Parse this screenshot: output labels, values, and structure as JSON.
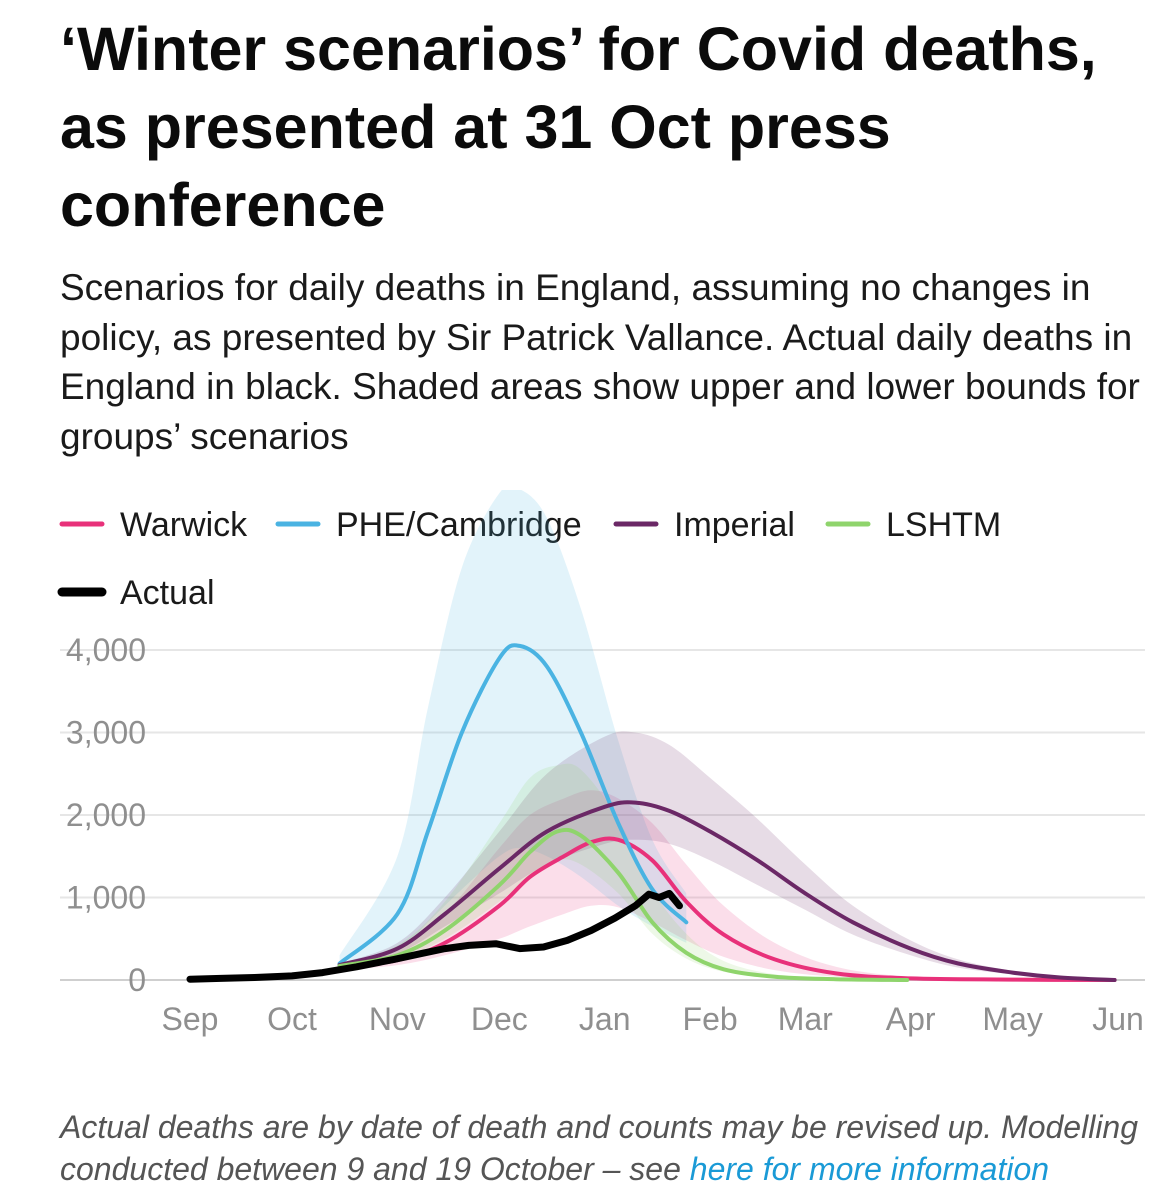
{
  "title": "‘Winter scenarios’ for Covid deaths, as presented at 31 Oct press conference",
  "subtitle": "Scenarios for daily deaths in England, assuming no changes in policy, as presented by Sir Patrick Vallance. Actual daily deaths in England in black. Shaded areas show upper and lower bounds for groups’ scenarios",
  "footnote": {
    "text": "Actual deaths are by date of death and counts may be revised up. Modelling conducted between 9 and 19 October – see ",
    "link_text": "here for more information"
  },
  "colors": {
    "Warwick": "#e8317a",
    "PHE/Cambridge": "#4ab3e2",
    "Imperial": "#6b2866",
    "LSHTM": "#8fd46c",
    "Actual": "#000000"
  },
  "chart_data": {
    "type": "line",
    "x_tick_labels": [
      "Sep",
      "Oct",
      "Nov",
      "Dec",
      "Jan",
      "Feb",
      "Mar",
      "Apr",
      "May",
      "Jun"
    ],
    "y_ticks": [
      0,
      1000,
      2000,
      3000,
      4000
    ],
    "y_tick_labels": [
      "0",
      "1,000",
      "2,000",
      "3,000",
      "4,000"
    ],
    "ylim": [
      0,
      4000
    ],
    "grid": true,
    "legend_position": "top",
    "series": [
      {
        "name": "Warwick",
        "x": [
          "2020-10-15",
          "2020-11-01",
          "2020-11-15",
          "2020-12-01",
          "2020-12-10",
          "2020-12-20",
          "2020-12-28",
          "2021-01-05",
          "2021-01-15",
          "2021-01-25",
          "2021-02-05",
          "2021-02-20",
          "2021-03-10",
          "2021-04-01",
          "2021-05-01",
          "2021-05-31"
        ],
        "values": [
          150,
          240,
          450,
          900,
          1250,
          1500,
          1670,
          1700,
          1450,
          950,
          550,
          250,
          80,
          20,
          5,
          0
        ],
        "lower": [
          120,
          180,
          300,
          500,
          650,
          800,
          900,
          880,
          700,
          480,
          280,
          120,
          40,
          10,
          3,
          0
        ],
        "upper": [
          200,
          350,
          800,
          1600,
          2000,
          2200,
          2300,
          2200,
          1900,
          1400,
          900,
          450,
          160,
          40,
          10,
          0
        ]
      },
      {
        "name": "PHE/Cambridge",
        "x": [
          "2020-10-15",
          "2020-11-01",
          "2020-11-10",
          "2020-11-20",
          "2020-12-01",
          "2020-12-07",
          "2020-12-15",
          "2020-12-25",
          "2021-01-05",
          "2021-01-15",
          "2021-01-25"
        ],
        "values": [
          200,
          800,
          1800,
          3000,
          3900,
          4050,
          3800,
          3000,
          1900,
          1100,
          700
        ],
        "lower": [
          150,
          350,
          700,
          1100,
          1500,
          1600,
          1500,
          1250,
          900,
          650,
          450
        ],
        "upper": [
          300,
          1500,
          3300,
          5000,
          5900,
          5950,
          5600,
          4500,
          2900,
          1700,
          1050
        ]
      },
      {
        "name": "Imperial",
        "x": [
          "2020-10-15",
          "2020-11-01",
          "2020-11-15",
          "2020-12-01",
          "2020-12-15",
          "2021-01-01",
          "2021-01-10",
          "2021-01-20",
          "2021-02-01",
          "2021-02-15",
          "2021-03-01",
          "2021-03-15",
          "2021-04-01",
          "2021-04-15",
          "2021-05-01",
          "2021-05-15",
          "2021-05-31"
        ],
        "values": [
          180,
          380,
          800,
          1350,
          1800,
          2100,
          2150,
          2050,
          1800,
          1450,
          1050,
          700,
          380,
          200,
          90,
          30,
          0
        ],
        "lower": [
          160,
          320,
          650,
          1050,
          1400,
          1650,
          1700,
          1650,
          1450,
          1150,
          850,
          550,
          300,
          150,
          70,
          25,
          0
        ],
        "upper": [
          200,
          450,
          1000,
          1800,
          2500,
          2950,
          3000,
          2850,
          2450,
          1950,
          1400,
          900,
          480,
          250,
          110,
          40,
          0
        ]
      },
      {
        "name": "LSHTM",
        "x": [
          "2020-10-15",
          "2020-11-01",
          "2020-11-15",
          "2020-12-01",
          "2020-12-10",
          "2020-12-18",
          "2020-12-25",
          "2021-01-05",
          "2021-01-15",
          "2021-01-25",
          "2021-02-05",
          "2021-02-20",
          "2021-03-10",
          "2021-03-31"
        ],
        "values": [
          170,
          300,
          600,
          1150,
          1550,
          1800,
          1750,
          1300,
          700,
          330,
          130,
          40,
          10,
          0
        ],
        "lower": [
          150,
          260,
          500,
          950,
          1250,
          1450,
          1400,
          1050,
          560,
          260,
          100,
          30,
          8,
          0
        ],
        "upper": [
          200,
          420,
          950,
          1900,
          2450,
          2600,
          2550,
          1950,
          1100,
          560,
          230,
          70,
          15,
          0
        ]
      },
      {
        "name": "Actual",
        "x": [
          "2020-09-01",
          "2020-09-10",
          "2020-09-20",
          "2020-10-01",
          "2020-10-10",
          "2020-10-20",
          "2020-10-31",
          "2020-11-08",
          "2020-11-15",
          "2020-11-22",
          "2020-11-30",
          "2020-12-07",
          "2020-12-14",
          "2020-12-21",
          "2020-12-28",
          "2021-01-04",
          "2021-01-10",
          "2021-01-14",
          "2021-01-17",
          "2021-01-20",
          "2021-01-23"
        ],
        "values": [
          10,
          20,
          30,
          50,
          90,
          160,
          250,
          320,
          380,
          420,
          440,
          380,
          400,
          480,
          600,
          750,
          900,
          1040,
          1000,
          1050,
          900
        ]
      }
    ]
  }
}
